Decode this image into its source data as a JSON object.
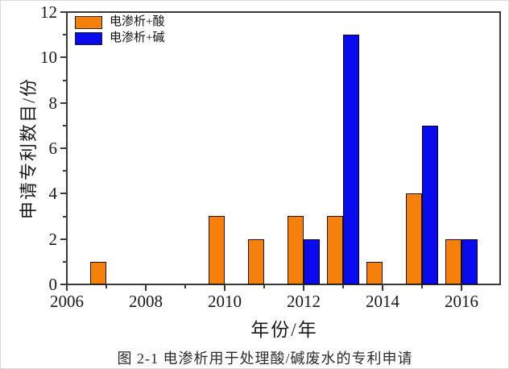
{
  "figure": {
    "caption": "图 2-1  电渗析用于处理酸/碱废水的专利申请"
  },
  "chart_data": {
    "type": "bar",
    "title": "",
    "xlabel": "年份/年",
    "ylabel": "申请专利数目/份",
    "xlim": [
      2006,
      2017
    ],
    "ylim": [
      0,
      12
    ],
    "x": [
      2006,
      2007,
      2008,
      2009,
      2010,
      2011,
      2012,
      2013,
      2014,
      2015,
      2016
    ],
    "series": [
      {
        "name": "电渗析+酸",
        "color": "#F5810C",
        "values": [
          0,
          1,
          0,
          0,
          3,
          2,
          3,
          3,
          1,
          4,
          2
        ]
      },
      {
        "name": "电渗析+碱",
        "color": "#0A0AEF",
        "values": [
          0,
          0,
          0,
          0,
          0,
          0,
          2,
          11,
          0,
          7,
          2
        ]
      }
    ],
    "x_major_ticks": [
      2006,
      2008,
      2010,
      2012,
      2014,
      2016
    ],
    "x_minor_ticks": [
      2007,
      2009,
      2011,
      2013,
      2015
    ],
    "y_major_ticks": [
      0,
      2,
      4,
      6,
      8,
      10,
      12
    ],
    "y_minor_ticks": [
      1,
      3,
      5,
      7,
      9,
      11
    ],
    "grid": false,
    "legend_position": "top-left-inside",
    "bar_width_years": 0.4,
    "frame_color": "#3a3a3a"
  }
}
